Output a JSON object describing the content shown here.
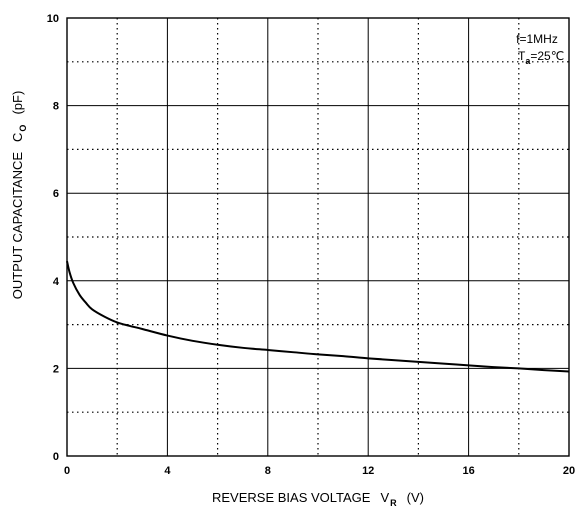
{
  "chart_data": {
    "type": "line",
    "title": "",
    "xlabel": {
      "text": "REVERSE BIAS VOLTAGE",
      "symbol": "V",
      "subscript": "R",
      "unit": "(V)"
    },
    "ylabel": {
      "text": "OUTPUT CAPACITANCE",
      "symbol": "C",
      "subscript": "O",
      "unit": "(pF)"
    },
    "xlim": [
      0,
      20
    ],
    "ylim": [
      0,
      10
    ],
    "x_tick_labels": [
      "0",
      "4",
      "8",
      "12",
      "16",
      "20"
    ],
    "y_tick_labels": [
      "0",
      "2",
      "4",
      "6",
      "8",
      "10"
    ],
    "grid": {
      "major": "solid",
      "minor": "dotted"
    },
    "annotation": {
      "line1": "f=1MHz",
      "line2_symbol": "T",
      "line2_subscript": "a",
      "line2_value": "=25℃"
    },
    "series": [
      {
        "x": [
          0,
          0.1,
          0.25,
          0.5,
          0.75,
          1,
          1.5,
          2,
          2.5,
          3,
          4,
          5,
          6,
          7,
          8,
          9,
          10,
          11,
          12,
          13,
          14,
          15,
          16,
          17,
          18,
          19,
          20
        ],
        "y": [
          4.45,
          4.2,
          3.95,
          3.68,
          3.5,
          3.35,
          3.18,
          3.05,
          2.97,
          2.9,
          2.75,
          2.63,
          2.54,
          2.47,
          2.42,
          2.37,
          2.32,
          2.28,
          2.23,
          2.19,
          2.15,
          2.11,
          2.07,
          2.03,
          2.0,
          1.96,
          1.93
        ],
        "color": "#000000"
      }
    ]
  }
}
